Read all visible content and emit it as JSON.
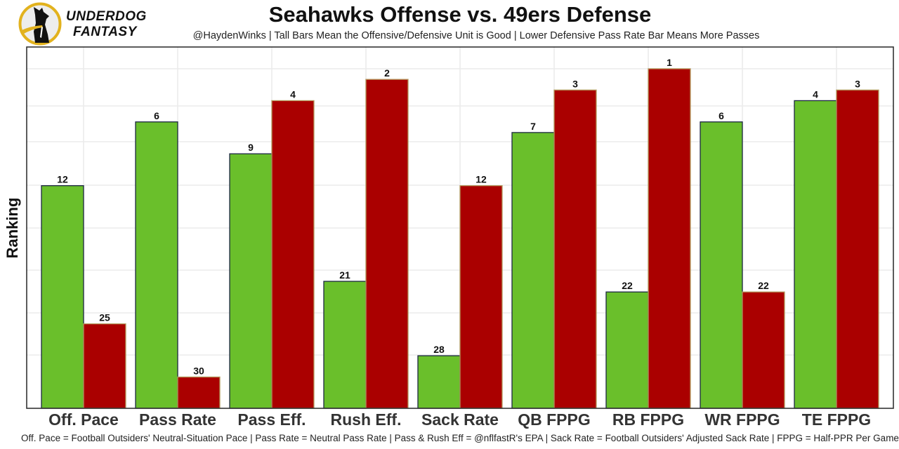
{
  "brand": {
    "line1": "UNDERDOG",
    "line2": "FANTASY",
    "ring_color": "#e2b21e",
    "dog_color": "#111111"
  },
  "colors": {
    "offense_fill": "#6abf2b",
    "offense_border": "#1c2742",
    "defense_fill": "#aa0000",
    "defense_border": "#b3995d",
    "grid": "#ebebeb",
    "panel_border": "#333333"
  },
  "chart_data": {
    "type": "bar",
    "title": "Seahawks Offense vs. 49ers Defense",
    "subtitle": "@HaydenWinks | Tall Bars Mean the Offensive/Defensive Unit is Good | Lower Defensive Pass Rate Bar Means More Passes",
    "caption": "Off. Pace = Football Outsiders' Neutral-Situation Pace | Pass Rate = Neutral Pass Rate | Pass & Rush Eff = @nflfastR's EPA | Sack Rate = Football Outsiders' Adjusted Sack Rate | FPPG = Half-PPR Per Game",
    "xlabel": "",
    "ylabel": "Ranking",
    "y_axis_note": "Rank 1 is the tallest bar; lower rank = taller bar",
    "rank_range": [
      1,
      32
    ],
    "grid": true,
    "legend": "none",
    "categories": [
      "Off. Pace",
      "Pass Rate",
      "Pass Eff.",
      "Rush Eff.",
      "Sack Rate",
      "QB FPPG",
      "RB FPPG",
      "WR FPPG",
      "TE FPPG"
    ],
    "series": [
      {
        "name": "Seahawks Offense",
        "values": [
          12,
          6,
          9,
          21,
          28,
          7,
          22,
          6,
          4
        ]
      },
      {
        "name": "49ers Defense",
        "values": [
          25,
          30,
          4,
          2,
          12,
          3,
          1,
          22,
          3
        ]
      }
    ]
  }
}
